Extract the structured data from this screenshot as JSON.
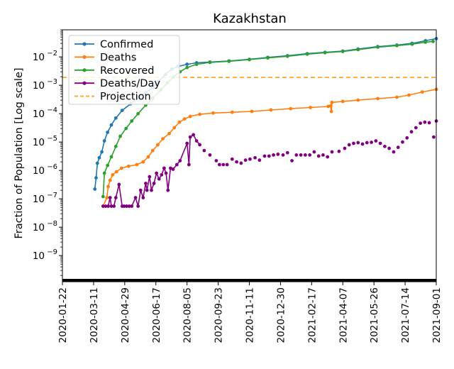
{
  "chart_data": {
    "type": "line",
    "title": "Kazakhstan",
    "xlabel": "",
    "ylabel": "Fraction of Population [Log scale]",
    "yscale": "log",
    "ylim": [
      1.2e-10,
      0.09
    ],
    "xlim": [
      "2020-01-22",
      "2021-09-01"
    ],
    "grid": false,
    "legend_position": "top-left",
    "x_tick_labels": [
      "2020-01-22",
      "2020-03-11",
      "2020-04-29",
      "2020-06-17",
      "2020-08-05",
      "2020-09-23",
      "2020-11-11",
      "2020-12-30",
      "2021-02-17",
      "2021-04-07",
      "2021-05-26",
      "2021-07-14",
      "2021-09-01"
    ],
    "y_ticks": [
      {
        "value": 1e-09,
        "label": "10",
        "exp": "−9"
      },
      {
        "value": 1e-08,
        "label": "10",
        "exp": "−8"
      },
      {
        "value": 1e-07,
        "label": "10",
        "exp": "−7"
      },
      {
        "value": 1e-06,
        "label": "10",
        "exp": "−6"
      },
      {
        "value": 1e-05,
        "label": "10",
        "exp": "−5"
      },
      {
        "value": 0.0001,
        "label": "10",
        "exp": "−4"
      },
      {
        "value": 0.001,
        "label": "10",
        "exp": "−3"
      },
      {
        "value": 0.01,
        "label": "10",
        "exp": "−2"
      }
    ],
    "series": [
      {
        "name": "Confirmed",
        "color": "#1f77b4",
        "points": [
          [
            "2020-03-13",
            2.2e-07
          ],
          [
            "2020-03-15",
            5.5e-07
          ],
          [
            "2020-03-17",
            1.8e-06
          ],
          [
            "2020-03-20",
            2.8e-06
          ],
          [
            "2020-03-24",
            4.5e-06
          ],
          [
            "2020-03-28",
            1.1e-05
          ],
          [
            "2020-04-02",
            2.2e-05
          ],
          [
            "2020-04-08",
            4e-05
          ],
          [
            "2020-04-15",
            7e-05
          ],
          [
            "2020-04-25",
            0.00013
          ],
          [
            "2020-05-08",
            0.00022
          ],
          [
            "2020-05-20",
            0.00036
          ],
          [
            "2020-06-01",
            0.00055
          ],
          [
            "2020-06-12",
            0.00085
          ],
          [
            "2020-06-22",
            0.0014
          ],
          [
            "2020-07-02",
            0.0024
          ],
          [
            "2020-07-12",
            0.0037
          ],
          [
            "2020-07-22",
            0.0046
          ],
          [
            "2020-08-05",
            0.0055
          ],
          [
            "2020-08-20",
            0.0062
          ],
          [
            "2020-09-10",
            0.0066
          ],
          [
            "2020-10-10",
            0.0072
          ],
          [
            "2020-11-11",
            0.0082
          ],
          [
            "2020-12-10",
            0.0096
          ],
          [
            "2021-01-10",
            0.011
          ],
          [
            "2021-02-10",
            0.013
          ],
          [
            "2021-03-10",
            0.0145
          ],
          [
            "2021-04-07",
            0.016
          ],
          [
            "2021-05-01",
            0.019
          ],
          [
            "2021-06-01",
            0.023
          ],
          [
            "2021-07-01",
            0.026
          ],
          [
            "2021-07-25",
            0.03
          ],
          [
            "2021-08-15",
            0.037
          ],
          [
            "2021-09-01",
            0.044
          ]
        ]
      },
      {
        "name": "Deaths",
        "color": "#ff7f0e",
        "points": [
          [
            "2020-03-26",
            5.5e-08
          ],
          [
            "2020-04-01",
            1.1e-07
          ],
          [
            "2020-04-03",
            2.7e-07
          ],
          [
            "2020-04-06",
            4.5e-07
          ],
          [
            "2020-04-10",
            7e-07
          ],
          [
            "2020-04-16",
            9e-07
          ],
          [
            "2020-04-24",
            1.2e-06
          ],
          [
            "2020-05-05",
            1.4e-06
          ],
          [
            "2020-05-18",
            1.6e-06
          ],
          [
            "2020-05-28",
            2e-06
          ],
          [
            "2020-06-05",
            3e-06
          ],
          [
            "2020-06-12",
            5e-06
          ],
          [
            "2020-06-20",
            8e-06
          ],
          [
            "2020-06-28",
            1.3e-05
          ],
          [
            "2020-07-08",
            2e-05
          ],
          [
            "2020-07-16",
            3.2e-05
          ],
          [
            "2020-07-24",
            5e-05
          ],
          [
            "2020-08-01",
            6.5e-05
          ],
          [
            "2020-08-10",
            8e-05
          ],
          [
            "2020-08-25",
            9.5e-05
          ],
          [
            "2020-09-15",
            0.000105
          ],
          [
            "2020-10-15",
            0.000112
          ],
          [
            "2020-11-15",
            0.00012
          ],
          [
            "2020-12-15",
            0.000135
          ],
          [
            "2021-01-15",
            0.00015
          ],
          [
            "2021-02-15",
            0.000165
          ],
          [
            "2021-03-15",
            0.00018
          ],
          [
            "2021-03-19",
            0.00019
          ],
          [
            "2021-03-20",
            0.00012
          ],
          [
            "2021-03-21",
            0.00025
          ],
          [
            "2021-04-07",
            0.00027
          ],
          [
            "2021-05-01",
            0.0003
          ],
          [
            "2021-06-01",
            0.00034
          ],
          [
            "2021-07-01",
            0.00038
          ],
          [
            "2021-07-20",
            0.00045
          ],
          [
            "2021-08-10",
            0.00058
          ],
          [
            "2021-09-01",
            0.00072
          ]
        ]
      },
      {
        "name": "Recovered",
        "color": "#2ca02c",
        "points": [
          [
            "2020-03-26",
            1.2e-07
          ],
          [
            "2020-03-28",
            8e-07
          ],
          [
            "2020-04-02",
            1.5e-06
          ],
          [
            "2020-04-08",
            3e-06
          ],
          [
            "2020-04-15",
            7e-06
          ],
          [
            "2020-04-22",
            1.6e-05
          ],
          [
            "2020-05-01",
            3e-05
          ],
          [
            "2020-05-10",
            5.5e-05
          ],
          [
            "2020-05-20",
            0.0001
          ],
          [
            "2020-06-01",
            0.0002
          ],
          [
            "2020-06-12",
            0.00035
          ],
          [
            "2020-06-25",
            0.0007
          ],
          [
            "2020-07-05",
            0.0012
          ],
          [
            "2020-07-15",
            0.002
          ],
          [
            "2020-07-25",
            0.003
          ],
          [
            "2020-08-05",
            0.0042
          ],
          [
            "2020-08-20",
            0.0055
          ],
          [
            "2020-09-10",
            0.0064
          ],
          [
            "2020-10-10",
            0.007
          ],
          [
            "2020-11-11",
            0.008
          ],
          [
            "2020-12-10",
            0.0092
          ],
          [
            "2021-01-10",
            0.0105
          ],
          [
            "2021-02-10",
            0.0125
          ],
          [
            "2021-03-10",
            0.014
          ],
          [
            "2021-04-07",
            0.0155
          ],
          [
            "2021-05-01",
            0.018
          ],
          [
            "2021-06-01",
            0.022
          ],
          [
            "2021-07-01",
            0.025
          ],
          [
            "2021-07-25",
            0.028
          ],
          [
            "2021-08-15",
            0.033
          ],
          [
            "2021-08-27",
            0.035
          ]
        ]
      },
      {
        "name": "Deaths/Day",
        "color": "#800080",
        "points": [
          [
            "2020-03-26",
            5.5e-08
          ],
          [
            "2020-03-30",
            5.5e-08
          ],
          [
            "2020-04-03",
            5.5e-08
          ],
          [
            "2020-04-06",
            1.1e-07
          ],
          [
            "2020-04-08",
            5.5e-08
          ],
          [
            "2020-04-12",
            5.5e-08
          ],
          [
            "2020-04-15",
            1.1e-07
          ],
          [
            "2020-04-20",
            3.2e-07
          ],
          [
            "2020-04-25",
            5.5e-08
          ],
          [
            "2020-04-28",
            5.5e-08
          ],
          [
            "2020-05-02",
            5.5e-08
          ],
          [
            "2020-05-06",
            5.5e-08
          ],
          [
            "2020-05-10",
            5.5e-08
          ],
          [
            "2020-05-16",
            1.1e-07
          ],
          [
            "2020-05-20",
            5.5e-08
          ],
          [
            "2020-05-24",
            2e-07
          ],
          [
            "2020-05-28",
            1.1e-07
          ],
          [
            "2020-06-01",
            3.5e-07
          ],
          [
            "2020-06-03",
            2e-07
          ],
          [
            "2020-06-07",
            6e-07
          ],
          [
            "2020-06-10",
            2e-07
          ],
          [
            "2020-06-14",
            3.5e-07
          ],
          [
            "2020-06-18",
            8e-07
          ],
          [
            "2020-06-22",
            5e-07
          ],
          [
            "2020-06-26",
            7e-07
          ],
          [
            "2020-06-30",
            1.2e-06
          ],
          [
            "2020-07-03",
            8e-07
          ],
          [
            "2020-07-06",
            2e-07
          ],
          [
            "2020-07-10",
            1.2e-06
          ],
          [
            "2020-07-14",
            1.1e-06
          ],
          [
            "2020-07-20",
            1.6e-06
          ],
          [
            "2020-07-25",
            2.2e-06
          ],
          [
            "2020-08-05",
            9e-06
          ],
          [
            "2020-08-08",
            1.6e-06
          ],
          [
            "2020-08-10",
            1.5e-05
          ],
          [
            "2020-08-15",
            1.8e-05
          ],
          [
            "2020-08-20",
            1.1e-05
          ],
          [
            "2020-08-25",
            8e-06
          ]
        ]
      }
    ],
    "deaths_per_day_scatter": [
      [
        "2020-09-01",
        5e-06
      ],
      [
        "2020-09-10",
        3.5e-06
      ],
      [
        "2020-09-20",
        2.2e-06
      ],
      [
        "2020-09-25",
        1.6e-06
      ],
      [
        "2020-10-01",
        1.6e-06
      ],
      [
        "2020-10-07",
        1.6e-06
      ],
      [
        "2020-10-15",
        2.5e-06
      ],
      [
        "2020-10-22",
        2e-06
      ],
      [
        "2020-10-29",
        1.8e-06
      ],
      [
        "2020-11-05",
        2.3e-06
      ],
      [
        "2020-11-12",
        2.5e-06
      ],
      [
        "2020-11-20",
        2.8e-06
      ],
      [
        "2020-11-27",
        2.3e-06
      ],
      [
        "2020-12-05",
        3.2e-06
      ],
      [
        "2020-12-12",
        3.2e-06
      ],
      [
        "2020-12-19",
        3.5e-06
      ],
      [
        "2020-12-26",
        3.7e-06
      ],
      [
        "2021-01-03",
        3.5e-06
      ],
      [
        "2021-01-10",
        4.2e-06
      ],
      [
        "2021-01-17",
        2.2e-06
      ],
      [
        "2021-01-24",
        3.5e-06
      ],
      [
        "2021-01-31",
        3.5e-06
      ],
      [
        "2021-02-07",
        3.5e-06
      ],
      [
        "2021-02-14",
        3.5e-06
      ],
      [
        "2021-02-21",
        4.5e-06
      ],
      [
        "2021-02-28",
        3.2e-06
      ],
      [
        "2021-03-07",
        3.5e-06
      ],
      [
        "2021-03-14",
        3e-06
      ],
      [
        "2021-03-21",
        4.5e-06
      ],
      [
        "2021-04-01",
        4.7e-06
      ],
      [
        "2021-04-10",
        6e-06
      ],
      [
        "2021-04-17",
        8e-06
      ],
      [
        "2021-04-24",
        9e-06
      ],
      [
        "2021-05-01",
        9.5e-06
      ],
      [
        "2021-05-08",
        8.5e-06
      ],
      [
        "2021-05-15",
        9.5e-06
      ],
      [
        "2021-05-22",
        9.8e-06
      ],
      [
        "2021-05-29",
        1.1e-05
      ],
      [
        "2021-06-05",
        9e-06
      ],
      [
        "2021-06-12",
        7e-06
      ],
      [
        "2021-06-19",
        6e-06
      ],
      [
        "2021-06-26",
        4.5e-06
      ],
      [
        "2021-07-03",
        6.5e-06
      ],
      [
        "2021-07-10",
        1e-05
      ],
      [
        "2021-07-17",
        1.4e-05
      ],
      [
        "2021-07-24",
        2.3e-05
      ],
      [
        "2021-07-31",
        3.2e-05
      ],
      [
        "2021-08-07",
        4.6e-05
      ],
      [
        "2021-08-14",
        5e-05
      ],
      [
        "2021-08-21",
        4.8e-05
      ],
      [
        "2021-08-28",
        1.5e-05
      ],
      [
        "2021-09-01",
        5.5e-05
      ]
    ],
    "projection": {
      "name": "Projection",
      "value": 0.0019,
      "color": "#ff9f1c",
      "style": "dashed"
    }
  }
}
